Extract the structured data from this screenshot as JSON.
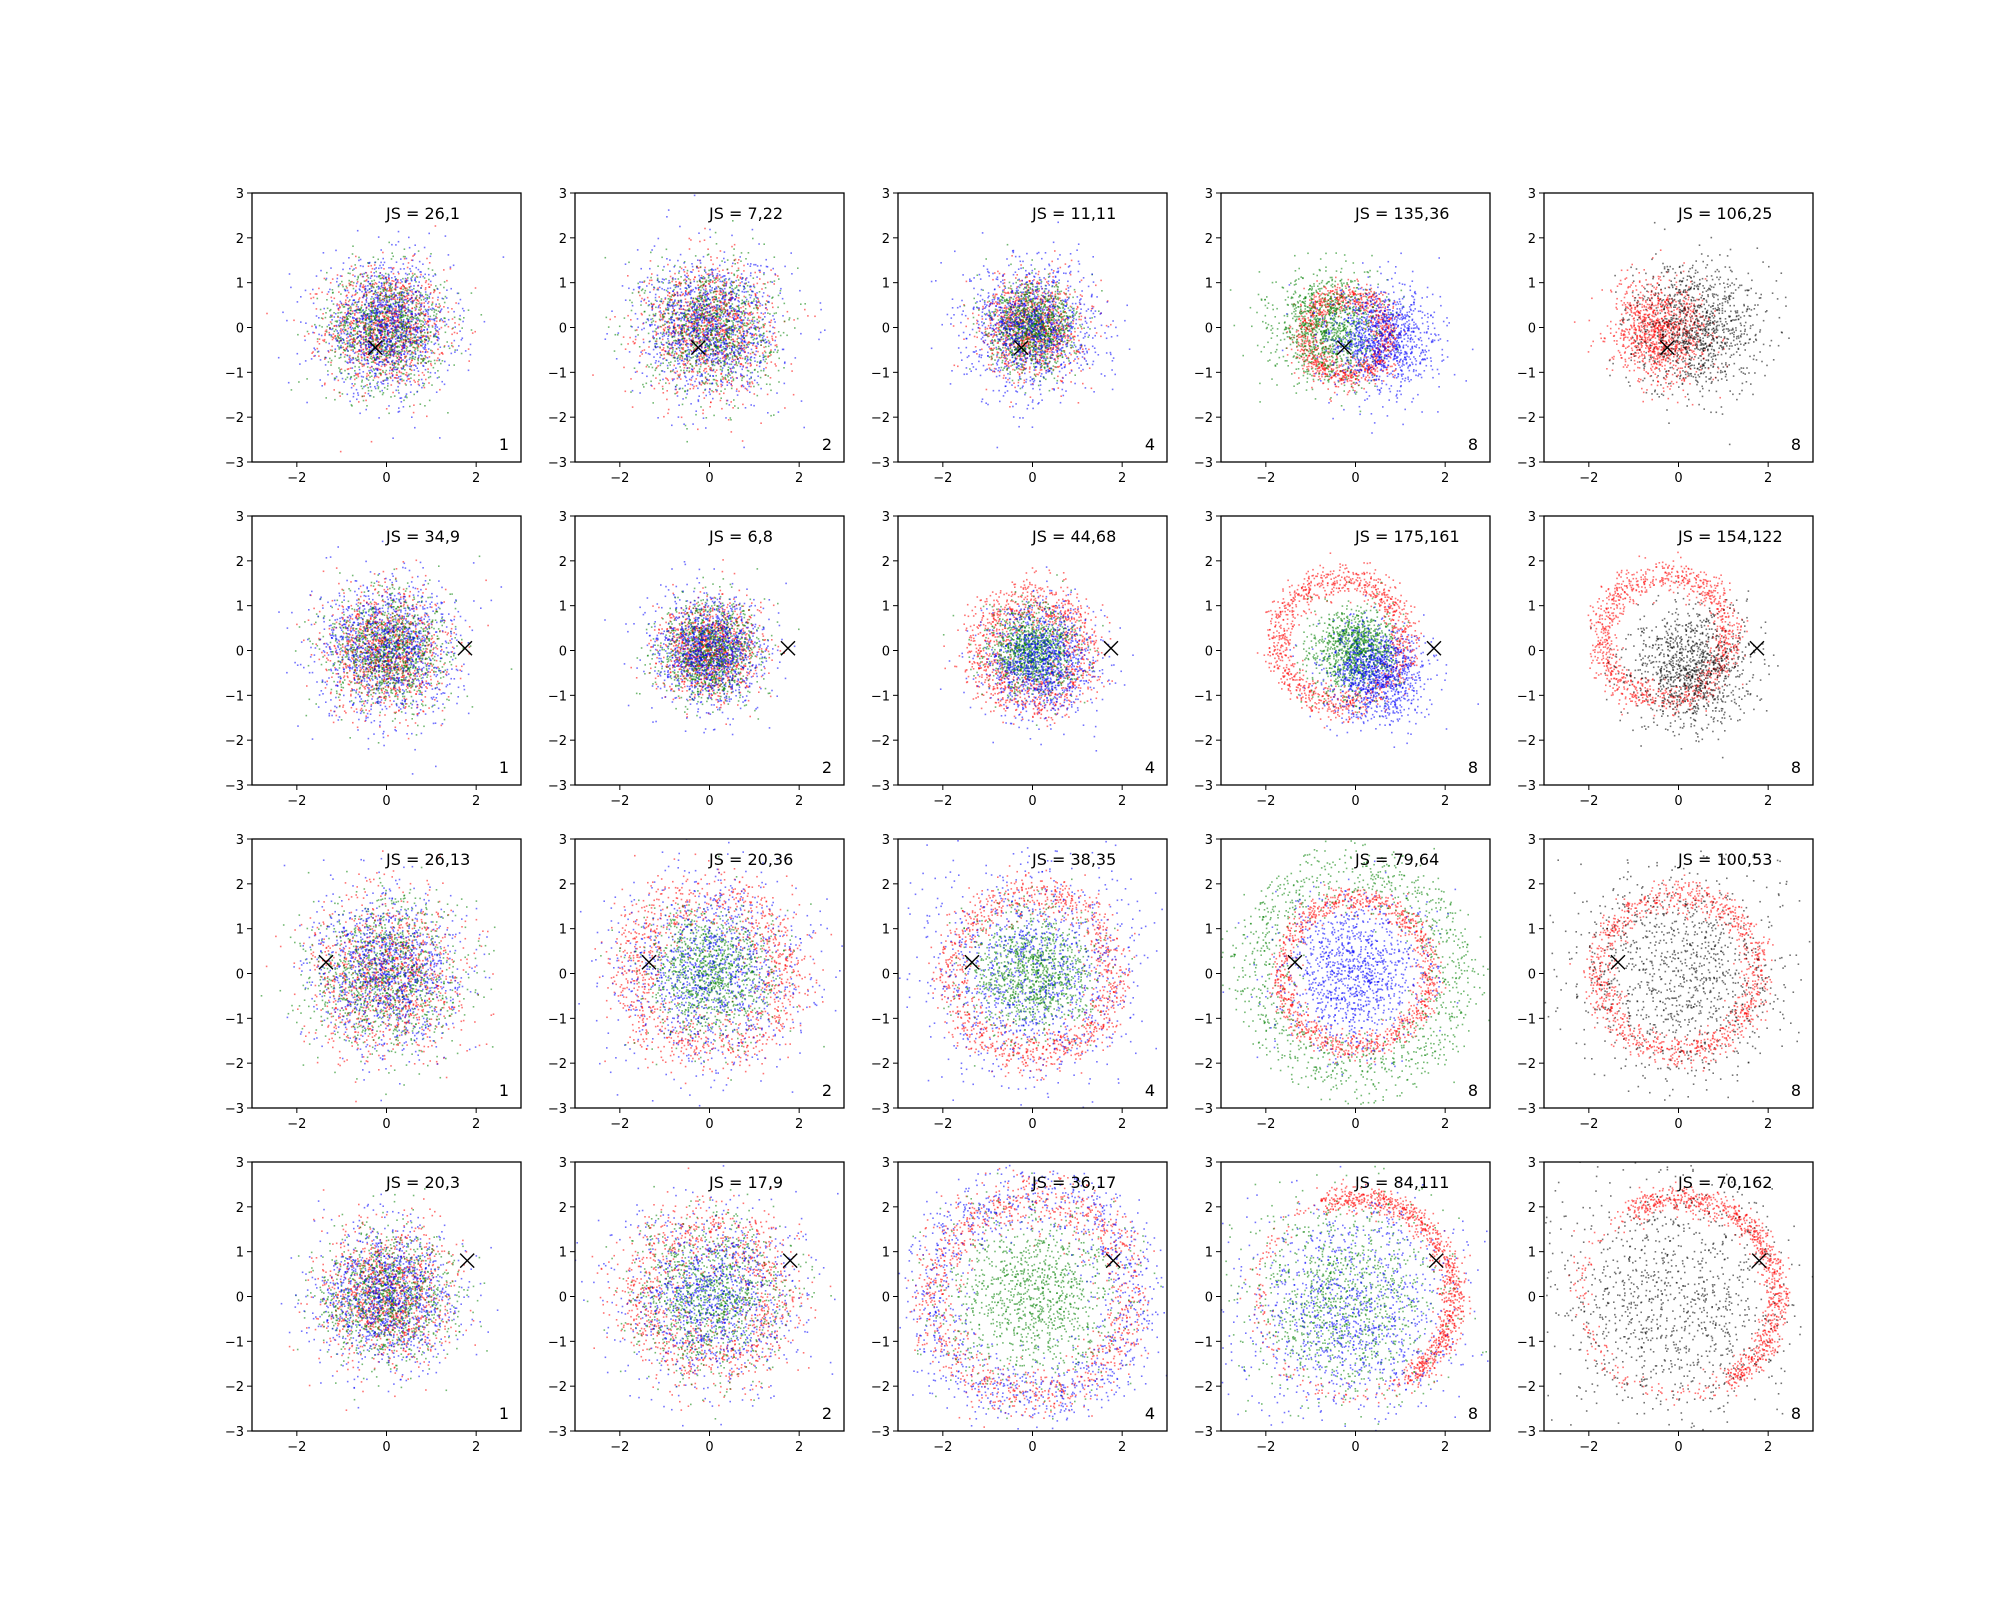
{
  "figure": {
    "rows": 4,
    "cols": 5
  },
  "colors": {
    "red": "#ff0000",
    "green": "#008000",
    "blue": "#0000ff",
    "black": "#000000",
    "marker": "#000000"
  },
  "chart_data": [
    {
      "type": "scatter",
      "row": 0,
      "col": 0,
      "xlim": [
        -3,
        3
      ],
      "ylim": [
        -3,
        3
      ],
      "xticks": [
        -2,
        0,
        2
      ],
      "yticks": [
        -3,
        -2,
        -1,
        0,
        1,
        2,
        3
      ],
      "annotation": "JS = 26,1",
      "panel_label": "1",
      "marker_point": [
        -0.25,
        -0.45
      ],
      "series": [
        {
          "color": "red",
          "shape": "blob",
          "radius": 1.1,
          "spread": 0.9
        },
        {
          "color": "green",
          "shape": "blob",
          "radius": 1.1,
          "spread": 0.9
        },
        {
          "color": "blue",
          "shape": "blob",
          "radius": 1.2,
          "spread": 1.0
        }
      ]
    },
    {
      "type": "scatter",
      "row": 0,
      "col": 1,
      "xlim": [
        -3,
        3
      ],
      "ylim": [
        -3,
        3
      ],
      "xticks": [
        -2,
        0,
        2
      ],
      "yticks": [
        -3,
        -2,
        -1,
        0,
        1,
        2,
        3
      ],
      "annotation": "JS = 7,22",
      "panel_label": "2",
      "marker_point": [
        -0.25,
        -0.45
      ],
      "series": [
        {
          "color": "red",
          "shape": "blob",
          "radius": 1.2,
          "spread": 1.0
        },
        {
          "color": "green",
          "shape": "blob",
          "radius": 1.2,
          "spread": 1.0
        },
        {
          "color": "blue",
          "shape": "blob",
          "radius": 1.3,
          "spread": 1.0
        }
      ]
    },
    {
      "type": "scatter",
      "row": 0,
      "col": 2,
      "xlim": [
        -3,
        3
      ],
      "ylim": [
        -3,
        3
      ],
      "xticks": [
        -2,
        0,
        2
      ],
      "yticks": [
        -3,
        -2,
        -1,
        0,
        1,
        2,
        3
      ],
      "annotation": "JS = 11,11",
      "panel_label": "4",
      "marker_point": [
        -0.25,
        -0.45
      ],
      "series": [
        {
          "color": "red",
          "shape": "blob",
          "radius": 0.9,
          "spread": 0.7
        },
        {
          "color": "green",
          "shape": "blob",
          "radius": 0.8,
          "spread": 0.7
        },
        {
          "color": "blue",
          "shape": "blob",
          "radius": 1.2,
          "spread": 1.0
        }
      ]
    },
    {
      "type": "scatter",
      "row": 0,
      "col": 3,
      "xlim": [
        -3,
        3
      ],
      "ylim": [
        -3,
        3
      ],
      "xticks": [
        -2,
        0,
        2
      ],
      "yticks": [
        -3,
        -2,
        -1,
        0,
        1,
        2,
        3
      ],
      "annotation": "JS = 135,36",
      "panel_label": "8",
      "marker_point": [
        -0.25,
        -0.45
      ],
      "series": [
        {
          "color": "red",
          "shape": "ring",
          "center": [
            -0.2,
            -0.2
          ],
          "radius": 0.9,
          "spread": 0.3
        },
        {
          "color": "green",
          "shape": "blob",
          "center": [
            -0.6,
            0.0
          ],
          "radius": 1.0,
          "spread": 0.8
        },
        {
          "color": "blue",
          "shape": "blob",
          "center": [
            0.6,
            -0.3
          ],
          "radius": 1.0,
          "spread": 0.8
        }
      ]
    },
    {
      "type": "scatter",
      "row": 0,
      "col": 4,
      "xlim": [
        -3,
        3
      ],
      "ylim": [
        -3,
        3
      ],
      "xticks": [
        -2,
        0,
        2
      ],
      "yticks": [
        -3,
        -2,
        -1,
        0,
        1,
        2,
        3
      ],
      "annotation": "JS = 106,25",
      "panel_label": "8",
      "marker_point": [
        -0.25,
        -0.45
      ],
      "series": [
        {
          "color": "red",
          "shape": "blob",
          "center": [
            -0.4,
            -0.1
          ],
          "radius": 0.9,
          "spread": 0.6
        },
        {
          "color": "black",
          "shape": "blob",
          "center": [
            0.4,
            0.0
          ],
          "radius": 1.2,
          "spread": 0.9
        }
      ]
    },
    {
      "type": "scatter",
      "row": 1,
      "col": 0,
      "xlim": [
        -3,
        3
      ],
      "ylim": [
        -3,
        3
      ],
      "xticks": [
        -2,
        0,
        2
      ],
      "yticks": [
        -3,
        -2,
        -1,
        0,
        1,
        2,
        3
      ],
      "annotation": "JS = 34,9",
      "panel_label": "1",
      "marker_point": [
        1.75,
        0.05
      ],
      "series": [
        {
          "color": "red",
          "shape": "blob",
          "radius": 1.1,
          "spread": 0.9
        },
        {
          "color": "green",
          "shape": "blob",
          "radius": 1.1,
          "spread": 0.9
        },
        {
          "color": "blue",
          "shape": "blob",
          "radius": 1.3,
          "spread": 1.0
        }
      ]
    },
    {
      "type": "scatter",
      "row": 1,
      "col": 1,
      "xlim": [
        -3,
        3
      ],
      "ylim": [
        -3,
        3
      ],
      "xticks": [
        -2,
        0,
        2
      ],
      "yticks": [
        -3,
        -2,
        -1,
        0,
        1,
        2,
        3
      ],
      "annotation": "JS = 6,8",
      "panel_label": "2",
      "marker_point": [
        1.75,
        0.05
      ],
      "series": [
        {
          "color": "red",
          "shape": "blob",
          "radius": 0.9,
          "spread": 0.7
        },
        {
          "color": "green",
          "shape": "blob",
          "radius": 0.9,
          "spread": 0.7
        },
        {
          "color": "blue",
          "shape": "blob",
          "radius": 1.0,
          "spread": 0.8
        }
      ]
    },
    {
      "type": "scatter",
      "row": 1,
      "col": 2,
      "xlim": [
        -3,
        3
      ],
      "ylim": [
        -3,
        3
      ],
      "xticks": [
        -2,
        0,
        2
      ],
      "yticks": [
        -3,
        -2,
        -1,
        0,
        1,
        2,
        3
      ],
      "annotation": "JS = 44,68",
      "panel_label": "4",
      "marker_point": [
        1.75,
        0.05
      ],
      "series": [
        {
          "color": "red",
          "shape": "ring",
          "radius": 1.1,
          "spread": 0.5
        },
        {
          "color": "green",
          "shape": "blob",
          "radius": 0.8,
          "spread": 0.7
        },
        {
          "color": "blue",
          "shape": "blob",
          "center": [
            0.2,
            -0.3
          ],
          "radius": 1.0,
          "spread": 0.8
        }
      ]
    },
    {
      "type": "scatter",
      "row": 1,
      "col": 3,
      "xlim": [
        -3,
        3
      ],
      "ylim": [
        -3,
        3
      ],
      "xticks": [
        -2,
        0,
        2
      ],
      "yticks": [
        -3,
        -2,
        -1,
        0,
        1,
        2,
        3
      ],
      "annotation": "JS = 175,161",
      "panel_label": "8",
      "marker_point": [
        1.75,
        0.05
      ],
      "series": [
        {
          "color": "red",
          "shape": "ring",
          "center": [
            -0.3,
            0.2
          ],
          "radius": 1.4,
          "spread": 0.3
        },
        {
          "color": "green",
          "shape": "blob",
          "center": [
            0.0,
            0.0
          ],
          "radius": 0.8,
          "spread": 0.6
        },
        {
          "color": "blue",
          "shape": "blob",
          "center": [
            0.5,
            -0.5
          ],
          "radius": 0.9,
          "spread": 0.7
        }
      ]
    },
    {
      "type": "scatter",
      "row": 1,
      "col": 4,
      "xlim": [
        -3,
        3
      ],
      "ylim": [
        -3,
        3
      ],
      "xticks": [
        -2,
        0,
        2
      ],
      "yticks": [
        -3,
        -2,
        -1,
        0,
        1,
        2,
        3
      ],
      "annotation": "JS = 154,122",
      "panel_label": "8",
      "marker_point": [
        1.75,
        0.05
      ],
      "series": [
        {
          "color": "red",
          "shape": "ring",
          "center": [
            -0.3,
            0.3
          ],
          "radius": 1.4,
          "spread": 0.3
        },
        {
          "color": "black",
          "shape": "blob",
          "center": [
            0.3,
            -0.4
          ],
          "radius": 1.1,
          "spread": 0.8
        }
      ]
    },
    {
      "type": "scatter",
      "row": 2,
      "col": 0,
      "xlim": [
        -3,
        3
      ],
      "ylim": [
        -3,
        3
      ],
      "xticks": [
        -2,
        0,
        2
      ],
      "yticks": [
        -3,
        -2,
        -1,
        0,
        1,
        2,
        3
      ],
      "annotation": "JS = 26,13",
      "panel_label": "1",
      "marker_point": [
        -1.35,
        0.25
      ],
      "series": [
        {
          "color": "red",
          "shape": "blob",
          "radius": 1.4,
          "spread": 1.0
        },
        {
          "color": "green",
          "shape": "blob",
          "radius": 1.4,
          "spread": 1.0
        },
        {
          "color": "blue",
          "shape": "blob",
          "radius": 1.4,
          "spread": 1.0
        }
      ]
    },
    {
      "type": "scatter",
      "row": 2,
      "col": 1,
      "xlim": [
        -3,
        3
      ],
      "ylim": [
        -3,
        3
      ],
      "xticks": [
        -2,
        0,
        2
      ],
      "yticks": [
        -3,
        -2,
        -1,
        0,
        1,
        2,
        3
      ],
      "annotation": "JS = 20,36",
      "panel_label": "2",
      "marker_point": [
        -1.35,
        0.25
      ],
      "series": [
        {
          "color": "red",
          "shape": "ring",
          "radius": 1.7,
          "spread": 0.6
        },
        {
          "color": "green",
          "shape": "blob",
          "radius": 1.2,
          "spread": 0.9
        },
        {
          "color": "blue",
          "shape": "blob",
          "radius": 1.8,
          "spread": 1.0
        }
      ]
    },
    {
      "type": "scatter",
      "row": 2,
      "col": 2,
      "xlim": [
        -3,
        3
      ],
      "ylim": [
        -3,
        3
      ],
      "xticks": [
        -2,
        0,
        2
      ],
      "yticks": [
        -3,
        -2,
        -1,
        0,
        1,
        2,
        3
      ],
      "annotation": "JS = 38,35",
      "panel_label": "4",
      "marker_point": [
        -1.35,
        0.25
      ],
      "series": [
        {
          "color": "red",
          "shape": "ring",
          "radius": 1.8,
          "spread": 0.4
        },
        {
          "color": "green",
          "shape": "blob",
          "radius": 1.1,
          "spread": 0.8
        },
        {
          "color": "blue",
          "shape": "blob",
          "radius": 2.0,
          "spread": 1.0
        }
      ]
    },
    {
      "type": "scatter",
      "row": 2,
      "col": 3,
      "xlim": [
        -3,
        3
      ],
      "ylim": [
        -3,
        3
      ],
      "xticks": [
        -2,
        0,
        2
      ],
      "yticks": [
        -3,
        -2,
        -1,
        0,
        1,
        2,
        3
      ],
      "annotation": "JS = 79,64",
      "panel_label": "8",
      "marker_point": [
        -1.35,
        0.25
      ],
      "series": [
        {
          "color": "red",
          "shape": "ring",
          "radius": 1.65,
          "spread": 0.25
        },
        {
          "color": "green",
          "shape": "ring",
          "radius": 2.2,
          "spread": 0.6
        },
        {
          "color": "blue",
          "shape": "blob",
          "radius": 1.3,
          "spread": 0.9
        }
      ]
    },
    {
      "type": "scatter",
      "row": 2,
      "col": 4,
      "xlim": [
        -3,
        3
      ],
      "ylim": [
        -3,
        3
      ],
      "xticks": [
        -2,
        0,
        2
      ],
      "yticks": [
        -3,
        -2,
        -1,
        0,
        1,
        2,
        3
      ],
      "annotation": "JS = 100,53",
      "panel_label": "8",
      "marker_point": [
        -1.35,
        0.25
      ],
      "series": [
        {
          "color": "red",
          "shape": "ring",
          "radius": 1.75,
          "spread": 0.3
        },
        {
          "color": "black",
          "shape": "blob",
          "radius": 2.0,
          "spread": 1.0
        }
      ]
    },
    {
      "type": "scatter",
      "row": 3,
      "col": 0,
      "xlim": [
        -3,
        3
      ],
      "ylim": [
        -3,
        3
      ],
      "xticks": [
        -2,
        0,
        2
      ],
      "yticks": [
        -3,
        -2,
        -1,
        0,
        1,
        2,
        3
      ],
      "annotation": "JS = 20,3",
      "panel_label": "1",
      "marker_point": [
        1.8,
        0.8
      ],
      "series": [
        {
          "color": "red",
          "shape": "blob",
          "radius": 1.2,
          "spread": 0.9
        },
        {
          "color": "green",
          "shape": "blob",
          "radius": 1.2,
          "spread": 0.9
        },
        {
          "color": "blue",
          "shape": "blob",
          "radius": 1.3,
          "spread": 1.0
        }
      ]
    },
    {
      "type": "scatter",
      "row": 3,
      "col": 1,
      "xlim": [
        -3,
        3
      ],
      "ylim": [
        -3,
        3
      ],
      "xticks": [
        -2,
        0,
        2
      ],
      "yticks": [
        -3,
        -2,
        -1,
        0,
        1,
        2,
        3
      ],
      "annotation": "JS = 17,9",
      "panel_label": "2",
      "marker_point": [
        1.8,
        0.8
      ],
      "series": [
        {
          "color": "red",
          "shape": "ring",
          "radius": 1.5,
          "spread": 0.7
        },
        {
          "color": "green",
          "shape": "blob",
          "radius": 1.4,
          "spread": 1.0
        },
        {
          "color": "blue",
          "shape": "blob",
          "radius": 1.6,
          "spread": 1.0
        }
      ]
    },
    {
      "type": "scatter",
      "row": 3,
      "col": 2,
      "xlim": [
        -3,
        3
      ],
      "ylim": [
        -3,
        3
      ],
      "xticks": [
        -2,
        0,
        2
      ],
      "yticks": [
        -3,
        -2,
        -1,
        0,
        1,
        2,
        3
      ],
      "annotation": "JS = 36,17",
      "panel_label": "4",
      "marker_point": [
        1.8,
        0.8
      ],
      "series": [
        {
          "color": "red",
          "shape": "ring",
          "radius": 2.2,
          "spread": 0.5
        },
        {
          "color": "green",
          "shape": "blob",
          "radius": 1.6,
          "spread": 0.9
        },
        {
          "color": "blue",
          "shape": "ring",
          "radius": 2.3,
          "spread": 0.7
        }
      ]
    },
    {
      "type": "scatter",
      "row": 3,
      "col": 3,
      "xlim": [
        -3,
        3
      ],
      "ylim": [
        -3,
        3
      ],
      "xticks": [
        -2,
        0,
        2
      ],
      "yticks": [
        -3,
        -2,
        -1,
        0,
        1,
        2,
        3
      ],
      "annotation": "JS = 84,111",
      "panel_label": "8",
      "marker_point": [
        1.8,
        0.8
      ],
      "series": [
        {
          "color": "red",
          "shape": "arc",
          "center": [
            0.0,
            0.0
          ],
          "radius": 2.2,
          "spread": 0.25,
          "angle": [
            -60,
            110
          ]
        },
        {
          "color": "green",
          "shape": "blob",
          "center": [
            -0.3,
            -0.1
          ],
          "radius": 1.8,
          "spread": 0.9
        },
        {
          "color": "blue",
          "shape": "blob",
          "center": [
            -0.1,
            -0.4
          ],
          "radius": 2.0,
          "spread": 0.9
        }
      ]
    },
    {
      "type": "scatter",
      "row": 3,
      "col": 4,
      "xlim": [
        -3,
        3
      ],
      "ylim": [
        -3,
        3
      ],
      "xticks": [
        -2,
        0,
        2
      ],
      "yticks": [
        -3,
        -2,
        -1,
        0,
        1,
        2,
        3
      ],
      "annotation": "JS = 70,162",
      "panel_label": "8",
      "marker_point": [
        1.8,
        0.8
      ],
      "series": [
        {
          "color": "red",
          "shape": "arc",
          "center": [
            0.0,
            0.0
          ],
          "radius": 2.2,
          "spread": 0.25,
          "angle": [
            -60,
            120
          ]
        },
        {
          "color": "black",
          "shape": "blob",
          "center": [
            -0.2,
            -0.2
          ],
          "radius": 2.2,
          "spread": 1.0
        }
      ]
    }
  ]
}
